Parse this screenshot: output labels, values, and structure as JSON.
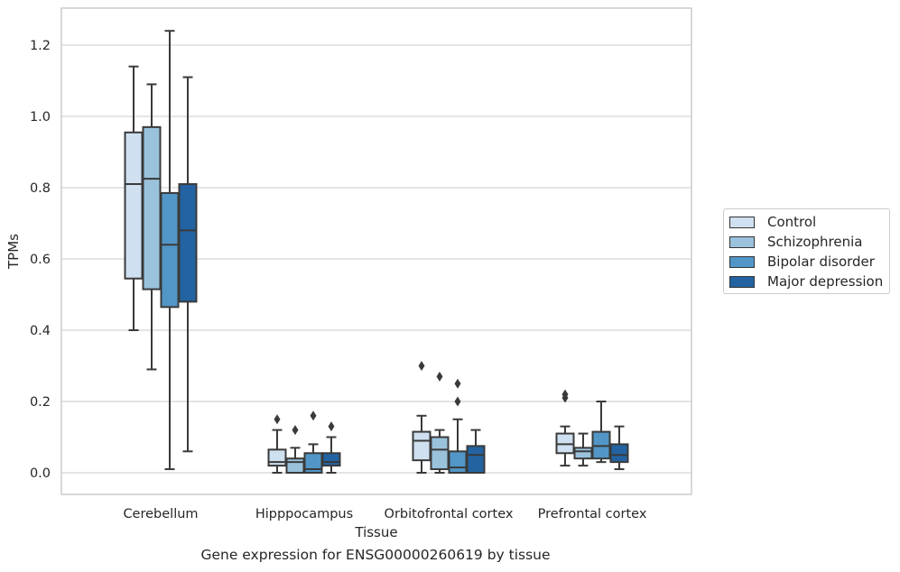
{
  "caption": "Gene expression for ENSG00000260619 by tissue",
  "chart_data": {
    "type": "box",
    "xlabel": "Tissue",
    "ylabel": "TPMs",
    "ylim": [
      -0.06,
      1.3
    ],
    "yticks": [
      "0.0",
      "0.2",
      "0.4",
      "0.6",
      "0.8",
      "1.0",
      "1.2"
    ],
    "grid": "horizontal",
    "legend_position": "right",
    "categories": [
      "Cerebellum",
      "Hipppocampus",
      "Orbitofrontal cortex",
      "Prefrontal cortex"
    ],
    "series": [
      {
        "name": "Control",
        "color": "#cfe0f0",
        "boxes": [
          {
            "min": 0.4,
            "q1": 0.545,
            "median": 0.81,
            "q3": 0.955,
            "max": 1.14,
            "outliers": []
          },
          {
            "min": 0.0,
            "q1": 0.02,
            "median": 0.03,
            "q3": 0.065,
            "max": 0.12,
            "outliers": [
              0.15
            ]
          },
          {
            "min": 0.0,
            "q1": 0.035,
            "median": 0.09,
            "q3": 0.115,
            "max": 0.16,
            "outliers": [
              0.3
            ]
          },
          {
            "min": 0.02,
            "q1": 0.055,
            "median": 0.08,
            "q3": 0.11,
            "max": 0.13,
            "outliers": [
              0.21,
              0.22
            ]
          }
        ]
      },
      {
        "name": "Schizophrenia",
        "color": "#9ac2dd",
        "boxes": [
          {
            "min": 0.29,
            "q1": 0.515,
            "median": 0.825,
            "q3": 0.97,
            "max": 1.09,
            "outliers": []
          },
          {
            "min": 0.0,
            "q1": 0.0,
            "median": 0.03,
            "q3": 0.04,
            "max": 0.07,
            "outliers": [
              0.12
            ]
          },
          {
            "min": 0.0,
            "q1": 0.01,
            "median": 0.065,
            "q3": 0.1,
            "max": 0.12,
            "outliers": [
              0.27
            ]
          },
          {
            "min": 0.02,
            "q1": 0.04,
            "median": 0.06,
            "q3": 0.07,
            "max": 0.11,
            "outliers": []
          }
        ]
      },
      {
        "name": "Bipolar disorder",
        "color": "#5296c7",
        "boxes": [
          {
            "min": 0.01,
            "q1": 0.465,
            "median": 0.64,
            "q3": 0.785,
            "max": 1.24,
            "outliers": []
          },
          {
            "min": 0.0,
            "q1": 0.0,
            "median": 0.01,
            "q3": 0.055,
            "max": 0.08,
            "outliers": [
              0.16
            ]
          },
          {
            "min": 0.0,
            "q1": 0.0,
            "median": 0.015,
            "q3": 0.06,
            "max": 0.15,
            "outliers": [
              0.2,
              0.25
            ]
          },
          {
            "min": 0.03,
            "q1": 0.04,
            "median": 0.075,
            "q3": 0.115,
            "max": 0.2,
            "outliers": []
          }
        ]
      },
      {
        "name": "Major depression",
        "color": "#2363a2",
        "boxes": [
          {
            "min": 0.06,
            "q1": 0.48,
            "median": 0.68,
            "q3": 0.81,
            "max": 1.11,
            "outliers": []
          },
          {
            "min": 0.0,
            "q1": 0.02,
            "median": 0.03,
            "q3": 0.055,
            "max": 0.1,
            "outliers": [
              0.13
            ]
          },
          {
            "min": 0.0,
            "q1": 0.0,
            "median": 0.05,
            "q3": 0.075,
            "max": 0.12,
            "outliers": []
          },
          {
            "min": 0.01,
            "q1": 0.03,
            "median": 0.05,
            "q3": 0.08,
            "max": 0.13,
            "outliers": []
          }
        ]
      }
    ]
  }
}
